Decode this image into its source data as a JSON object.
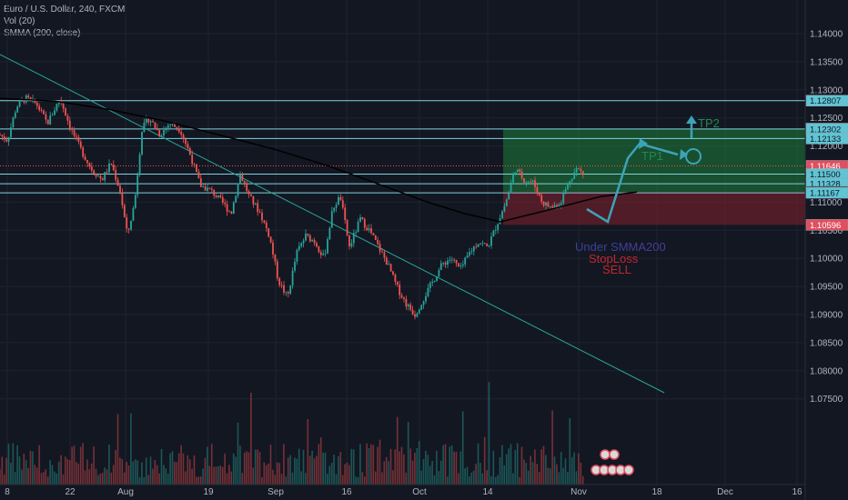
{
  "legend": {
    "title": "Euro / U.S. Dollar, 240, FXCM",
    "vol": "Vol (20)",
    "smma": "SMMA (200, close)"
  },
  "chart_data": {
    "type": "candlestick",
    "symbol": "EURUSD",
    "timeframe": "240",
    "source": "FXCM",
    "ylim": [
      1.073,
      1.143
    ],
    "y_ticks": [
      "1.14000",
      "1.13500",
      "1.13000",
      "1.12500",
      "1.12000",
      "1.11500",
      "1.11000",
      "1.10500",
      "1.10000",
      "1.09500",
      "1.09000",
      "1.08500",
      "1.08000",
      "1.07500"
    ],
    "x_ticks": [
      "8",
      "22",
      "Aug",
      "19",
      "Sep",
      "16",
      "Oct",
      "14",
      "Nov",
      "18",
      "Dec",
      "16"
    ],
    "price_labels": [
      {
        "value": "1.12807",
        "color": "#5fc4d4",
        "text_color": "#131722"
      },
      {
        "value": "1.12310",
        "color": "#0e7a3a",
        "text_color": "#ffffff"
      },
      {
        "value": "1.12302",
        "color": "#5fc4d4",
        "text_color": "#131722"
      },
      {
        "value": "1.12133",
        "color": "#5fc4d4",
        "text_color": "#131722"
      },
      {
        "value": "1.11646",
        "color": "#e04f5f",
        "text_color": "#ffffff"
      },
      {
        "value": "1.11500",
        "color": "#5fc4d4",
        "text_color": "#131722"
      },
      {
        "value": "1.11328",
        "color": "#5fc4d4",
        "text_color": "#131722"
      },
      {
        "value": "1.11184",
        "color": "#131722",
        "text_color": "#ffffff"
      },
      {
        "value": "1.11167",
        "color": "#5fc4d4",
        "text_color": "#131722"
      },
      {
        "value": "1.10596",
        "color": "#e04f5f",
        "text_color": "#ffffff"
      }
    ],
    "horizontal_levels": [
      1.12807,
      1.12302,
      1.12133,
      1.115,
      1.11328,
      1.11167
    ],
    "current_price": 1.11646,
    "smma_value": 1.11184,
    "target_zone": [
      1.11184,
      1.1231
    ],
    "stop_zone": [
      1.10596,
      1.11184
    ],
    "annotations": [
      {
        "text": "TP2",
        "color": "#1f8a4c"
      },
      {
        "text": "TP1",
        "color": "#1f8a4c"
      },
      {
        "text": "Under SMMA200",
        "color": "#3f3f9a"
      },
      {
        "text": "StopLoss",
        "color": "#c2262e"
      },
      {
        "text": "SELL",
        "color": "#c2262e"
      }
    ],
    "colors": {
      "up": "#26a69a",
      "down": "#ef5350",
      "smma": "#000000",
      "trendline": "#26a69a"
    }
  }
}
